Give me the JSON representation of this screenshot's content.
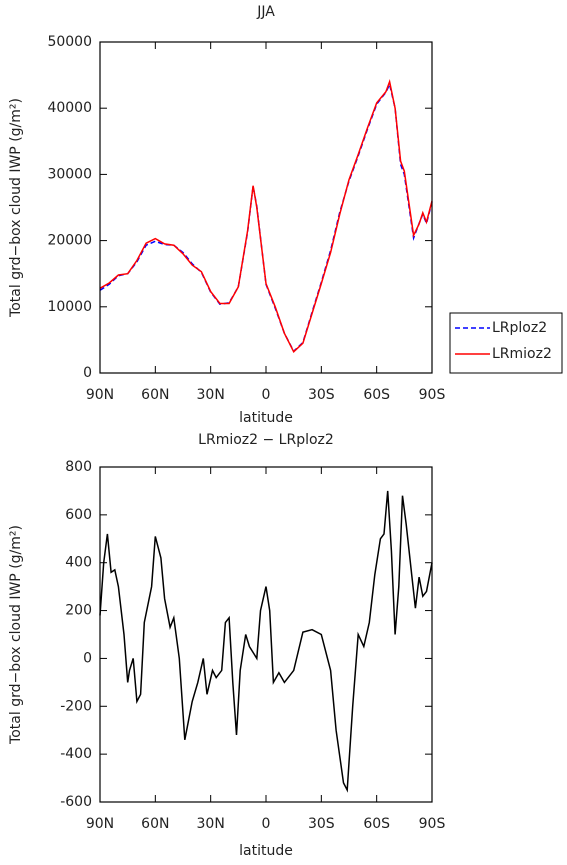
{
  "chart_data": [
    {
      "type": "line",
      "title": "JJA",
      "xlabel": "latitude",
      "ylabel": "Total grd−box cloud IWP (g/m²)",
      "x": [
        90,
        85,
        80,
        75,
        70,
        65,
        60,
        55,
        50,
        45,
        40,
        35,
        30,
        25,
        20,
        15,
        10,
        7,
        5,
        0,
        -5,
        -10,
        -15,
        -20,
        -25,
        -30,
        -35,
        -40,
        -45,
        -50,
        -55,
        -60,
        -65,
        -67,
        -70,
        -73,
        -75,
        -80,
        -83,
        -85,
        -87,
        -90
      ],
      "series": [
        {
          "name": "LRploz2",
          "color": "#0000ff",
          "linestyle": "dashed",
          "values": [
            12500,
            13400,
            14700,
            15000,
            16800,
            19300,
            19900,
            19400,
            19300,
            18200,
            16500,
            15200,
            12200,
            10400,
            10600,
            13000,
            21300,
            28200,
            25200,
            13400,
            9800,
            6000,
            3300,
            4600,
            9200,
            13700,
            18500,
            24300,
            29000,
            32800,
            36800,
            40600,
            42400,
            43600,
            40000,
            31500,
            30000,
            20400,
            22600,
            24000,
            22600,
            25800
          ]
        },
        {
          "name": "LRmioz2",
          "color": "#ff0000",
          "linestyle": "solid",
          "values": [
            12800,
            13600,
            14800,
            15000,
            17000,
            19600,
            20300,
            19500,
            19300,
            18000,
            16300,
            15300,
            12300,
            10500,
            10500,
            13000,
            21500,
            28300,
            25000,
            13500,
            10000,
            6000,
            3200,
            4500,
            9000,
            13500,
            18200,
            24000,
            29200,
            33000,
            37000,
            40800,
            42500,
            44000,
            40000,
            32000,
            30500,
            20800,
            22500,
            24200,
            22800,
            26000
          ]
        }
      ],
      "xlim": [
        90,
        -90
      ],
      "xticks": [
        {
          "value": 90,
          "label": "90N"
        },
        {
          "value": 60,
          "label": "60N"
        },
        {
          "value": 30,
          "label": "30N"
        },
        0,
        {
          "value": -30,
          "label": "30S"
        },
        {
          "value": -60,
          "label": "60S"
        },
        {
          "value": -90,
          "label": "90S"
        }
      ],
      "ylim": [
        0,
        50000
      ],
      "yticks": [
        0,
        10000,
        20000,
        30000,
        40000,
        50000
      ],
      "legend": "right"
    },
    {
      "type": "line",
      "title": "LRmioz2 − LRploz2",
      "xlabel": "latitude",
      "ylabel": "Total grd−box cloud IWP (g/m²)",
      "x": [
        90,
        88,
        86,
        84,
        82,
        80,
        77,
        75,
        74,
        72,
        70,
        68,
        66,
        62,
        60,
        57,
        55,
        52,
        50,
        47,
        44,
        40,
        37,
        34,
        32,
        29,
        27,
        24,
        22,
        20,
        18,
        16,
        14,
        11,
        9,
        5,
        3,
        0,
        -2,
        -4,
        -7,
        -10,
        -15,
        -20,
        -25,
        -30,
        -35,
        -38,
        -42,
        -44,
        -47,
        -50,
        -53,
        -56,
        -59,
        -62,
        -64,
        -66,
        -68,
        -70,
        -72,
        -74,
        -76,
        -79,
        -81,
        -83,
        -85,
        -87,
        -90
      ],
      "series": [
        {
          "name": "LRmioz2 − LRploz2",
          "color": "#000000",
          "linestyle": "solid",
          "values": [
            180,
            400,
            520,
            360,
            370,
            300,
            100,
            -100,
            -50,
            0,
            -180,
            -150,
            150,
            300,
            510,
            420,
            250,
            130,
            170,
            0,
            -340,
            -180,
            -100,
            0,
            -150,
            -50,
            -80,
            -50,
            150,
            170,
            -100,
            -320,
            -50,
            100,
            50,
            0,
            200,
            300,
            200,
            -100,
            -60,
            -100,
            -50,
            110,
            120,
            100,
            -50,
            -300,
            -520,
            -550,
            -200,
            100,
            50,
            150,
            350,
            500,
            520,
            700,
            450,
            100,
            300,
            680,
            560,
            350,
            210,
            340,
            260,
            280,
            400
          ]
        }
      ],
      "xlim": [
        90,
        -90
      ],
      "xticks": [
        {
          "value": 90,
          "label": "90N"
        },
        {
          "value": 60,
          "label": "60N"
        },
        {
          "value": 30,
          "label": "30N"
        },
        0,
        {
          "value": -30,
          "label": "30S"
        },
        {
          "value": -60,
          "label": "60S"
        },
        {
          "value": -90,
          "label": "90S"
        }
      ],
      "ylim": [
        -600,
        800
      ],
      "yticks": [
        -600,
        -400,
        -200,
        0,
        200,
        400,
        600,
        800
      ]
    }
  ]
}
